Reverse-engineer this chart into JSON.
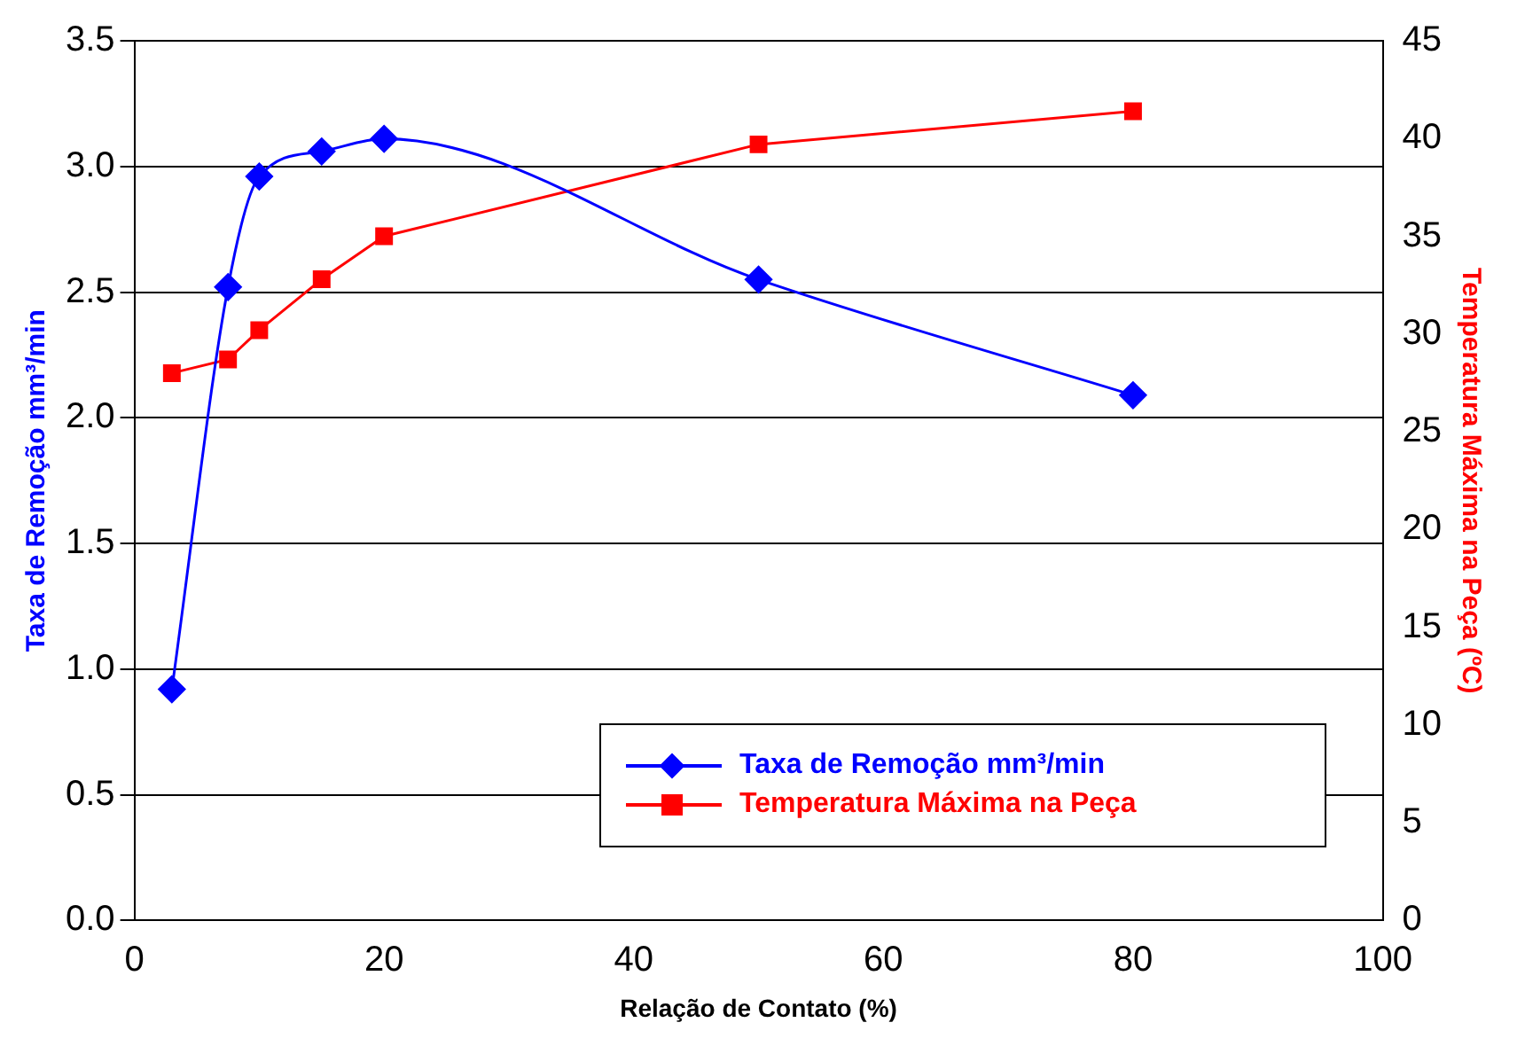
{
  "chart_data": {
    "type": "line",
    "xlabel": "Relação de Contato (%)",
    "ylabel": "Taxa de Remoção mm³/min",
    "y2label": "Temperatura Máxima na Peça (ºC)",
    "x": [
      3,
      7.5,
      10,
      15,
      20,
      50,
      80
    ],
    "series": [
      {
        "name": "Taxa de Remoção mm³/min",
        "color": "#0000ff",
        "marker": "diamond",
        "values": [
          0.92,
          2.52,
          2.96,
          3.06,
          3.11,
          2.55,
          2.09
        ]
      },
      {
        "name": "Temperatura Máxima na Peça",
        "color": "#ff0000",
        "marker": "square",
        "axis": "y2",
        "values": [
          28,
          28.7,
          30.2,
          32.8,
          35,
          39.7,
          41.4
        ]
      }
    ],
    "xlim": [
      0,
      100
    ],
    "xticks": [
      0,
      20,
      40,
      60,
      80,
      100
    ],
    "ylim": [
      0,
      3.5
    ],
    "yticks": [
      {
        "value": 0,
        "label": "0.0"
      },
      0.5,
      {
        "value": 1,
        "label": "1.0"
      },
      1.5,
      {
        "value": 2,
        "label": "2.0"
      },
      2.5,
      {
        "value": 3,
        "label": "3.0"
      },
      3.5
    ],
    "y2lim": [
      0,
      45
    ],
    "y2ticks": [
      0,
      5,
      10,
      15,
      20,
      25,
      30,
      35,
      40,
      45
    ],
    "grid": "y",
    "legend": "bottom right"
  }
}
